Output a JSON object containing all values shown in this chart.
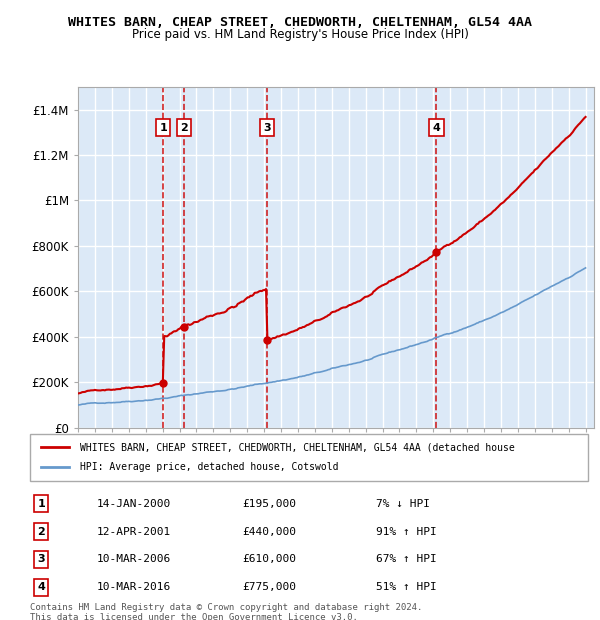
{
  "title": "WHITES BARN, CHEAP STREET, CHEDWORTH, CHELTENHAM, GL54 4AA",
  "subtitle": "Price paid vs. HM Land Registry's House Price Index (HPI)",
  "hpi_label": "HPI: Average price, detached house, Cotswold",
  "property_label": "WHITES BARN, CHEAP STREET, CHEDWORTH, CHELTENHAM, GL54 4AA (detached house",
  "footer": "Contains HM Land Registry data © Crown copyright and database right 2024.\nThis data is licensed under the Open Government Licence v3.0.",
  "background_color": "#ffffff",
  "plot_bg_color": "#dce9f7",
  "grid_color": "#ffffff",
  "hpi_line_color": "#6699cc",
  "property_line_color": "#cc0000",
  "vline_color": "#cc0000",
  "sale_marker_color": "#cc0000",
  "ylim": [
    0,
    1500000
  ],
  "yticks": [
    0,
    200000,
    400000,
    600000,
    800000,
    1000000,
    1200000,
    1400000
  ],
  "ytick_labels": [
    "£0",
    "£200K",
    "£400K",
    "£600K",
    "£800K",
    "£1M",
    "£1.2M",
    "£1.4M"
  ],
  "xmin": 1995.0,
  "xmax": 2025.5,
  "sales": [
    {
      "num": 1,
      "date": "14-JAN-2000",
      "price": 195000,
      "pct": "7%",
      "dir": "↓",
      "year": 2000.04
    },
    {
      "num": 2,
      "date": "12-APR-2001",
      "price": 440000,
      "pct": "91%",
      "dir": "↑",
      "year": 2001.28
    },
    {
      "num": 3,
      "date": "10-MAR-2006",
      "price": 610000,
      "pct": "67%",
      "dir": "↑",
      "year": 2006.19
    },
    {
      "num": 4,
      "date": "10-MAR-2016",
      "price": 775000,
      "pct": "51%",
      "dir": "↑",
      "year": 2016.19
    }
  ]
}
